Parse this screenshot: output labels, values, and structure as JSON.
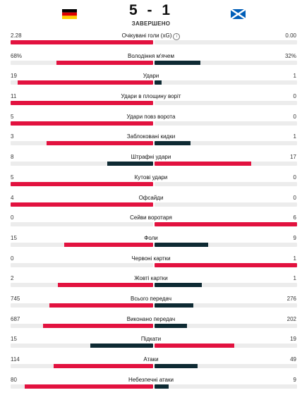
{
  "match": {
    "score": "5 - 1",
    "status": "ЗАВЕРШЕНО",
    "home_flag_icon": "germany-flag-icon",
    "away_flag_icon": "scotland-flag-icon"
  },
  "colors": {
    "leading": "#e2123f",
    "trailing": "#0e2a33",
    "track": "#ececec"
  },
  "stats": [
    {
      "label": "Очікувані голи (xG)",
      "home": "2.28",
      "away": "0.00",
      "info_icon": "info-icon",
      "info_glyph": "i"
    },
    {
      "label": "Володіння м'ячем",
      "home": "68%",
      "away": "32%"
    },
    {
      "label": "Удари",
      "home": "19",
      "away": "1"
    },
    {
      "label": "Удари в площину воріт",
      "home": "11",
      "away": "0"
    },
    {
      "label": "Удари повз ворота",
      "home": "5",
      "away": "0"
    },
    {
      "label": "Заблоковані кидки",
      "home": "3",
      "away": "1"
    },
    {
      "label": "Штрафні удари",
      "home": "8",
      "away": "17"
    },
    {
      "label": "Кутові удари",
      "home": "5",
      "away": "0"
    },
    {
      "label": "Офсайди",
      "home": "4",
      "away": "0"
    },
    {
      "label": "Сейви воротаря",
      "home": "0",
      "away": "6"
    },
    {
      "label": "Фоли",
      "home": "15",
      "away": "9"
    },
    {
      "label": "Червоні картки",
      "home": "0",
      "away": "1"
    },
    {
      "label": "Жовті картки",
      "home": "2",
      "away": "1"
    },
    {
      "label": "Всього передач",
      "home": "745",
      "away": "276"
    },
    {
      "label": "Виконано передач",
      "home": "687",
      "away": "202"
    },
    {
      "label": "Підкати",
      "home": "15",
      "away": "19"
    },
    {
      "label": "Атаки",
      "home": "114",
      "away": "49"
    },
    {
      "label": "Небезпечні атаки",
      "home": "80",
      "away": "9"
    }
  ]
}
